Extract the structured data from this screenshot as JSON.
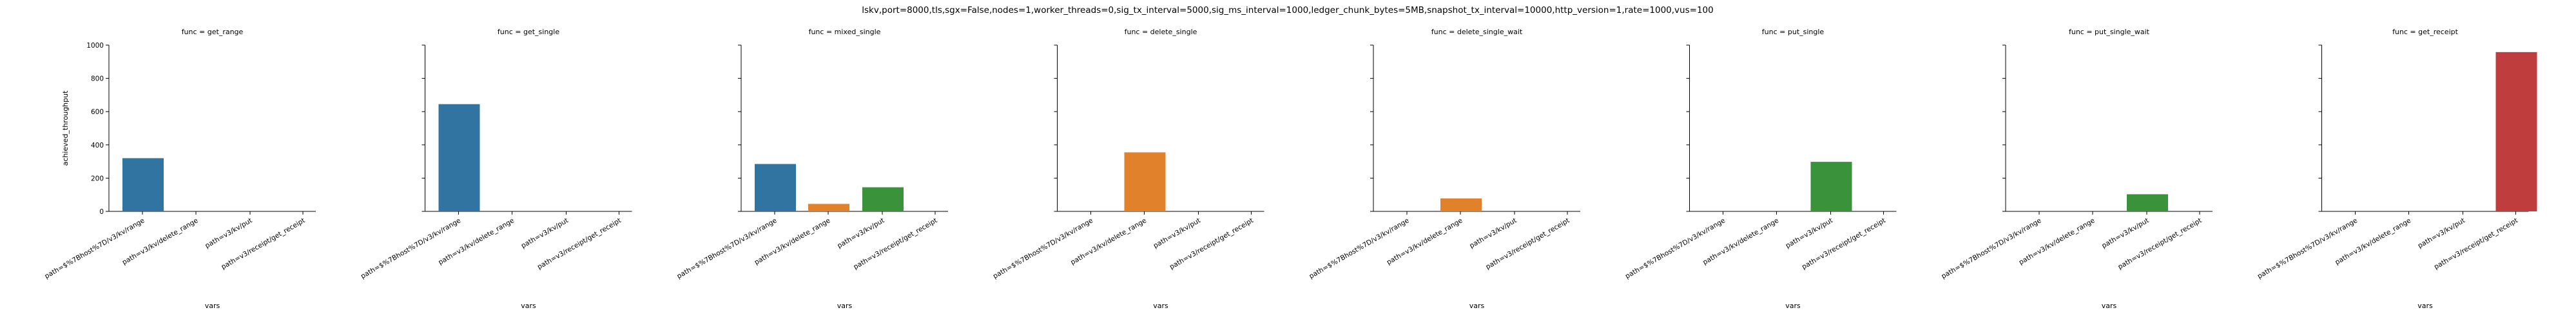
{
  "chart_data": {
    "type": "bar",
    "suptitle": "lskv,port=8000,tls,sgx=False,nodes=1,worker_threads=0,sig_tx_interval=5000,sig_ms_interval=1000,ledger_chunk_bytes=5MB,snapshot_tx_interval=10000,http_version=1,rate=1000,vus=100",
    "xlabel": "vars",
    "ylabel": "achieved_throughput",
    "ylim": [
      0,
      1000
    ],
    "yticks": [
      "0",
      "200",
      "400",
      "600",
      "800",
      "1000"
    ],
    "categories": [
      "path=$%7Bhost%7D/v3/kv/range",
      "path=v3/kv/delete_range",
      "path=v3/kv/put",
      "path=v3/receipt/get_receipt"
    ],
    "panels": [
      {
        "title": "func = get_range",
        "color": "#3274a1",
        "values": [
          320,
          0,
          0,
          0
        ]
      },
      {
        "title": "func = get_single",
        "color": "#3274a1",
        "values": [
          645,
          0,
          0,
          0
        ]
      },
      {
        "title": "func = mixed_single",
        "color": "#3274a1",
        "values": [
          285,
          45,
          145,
          0
        ],
        "colors": [
          "#3274a1",
          "#e1812c",
          "#3a923a",
          "#c03d3e"
        ]
      },
      {
        "title": "func = delete_single",
        "color": "#e1812c",
        "values": [
          0,
          355,
          0,
          0
        ]
      },
      {
        "title": "func = delete_single_wait",
        "color": "#e1812c",
        "values": [
          0,
          78,
          0,
          0
        ]
      },
      {
        "title": "func = put_single",
        "color": "#3a923a",
        "values": [
          0,
          0,
          298,
          0
        ]
      },
      {
        "title": "func = put_single_wait",
        "color": "#3a923a",
        "values": [
          0,
          0,
          103,
          0
        ]
      },
      {
        "title": "func = get_receipt",
        "color": "#c03d3e",
        "values": [
          0,
          0,
          0,
          958
        ]
      }
    ]
  }
}
